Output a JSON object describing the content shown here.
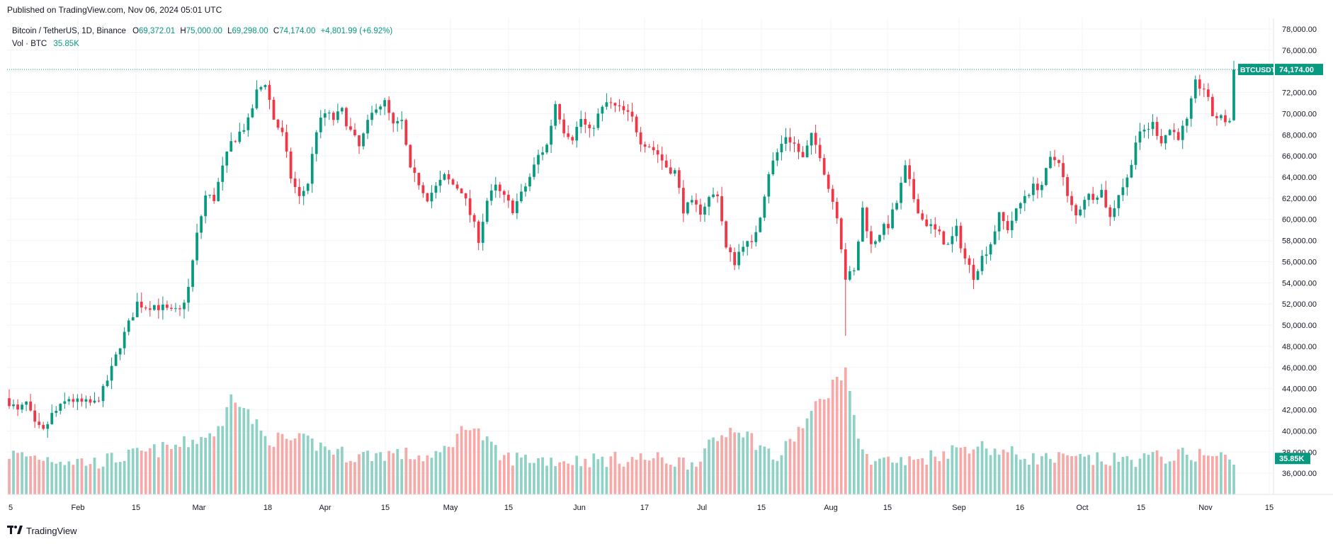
{
  "published": "Published on TradingView.com, Nov 06, 2024 05:01 UTC",
  "legend": {
    "symbol": "Bitcoin / TetherUS, 1D, Binance",
    "open_label": "O",
    "open": "69,372.01",
    "high_label": "H",
    "high": "75,000.00",
    "low_label": "L",
    "low": "69,298.00",
    "close_label": "C",
    "close": "74,174.00",
    "change": "+4,801.99 (+6.92%)",
    "vol_label": "Vol · BTC",
    "vol_value": "35.85K"
  },
  "footer": {
    "brand": "TradingView",
    "logo_icon": "tradingview-logo-icon"
  },
  "colors": {
    "up": "#089981",
    "down": "#F23645",
    "vol_up": "#90D1C6",
    "vol_down": "#F7A9A7",
    "grid": "#F0F3FA",
    "axis_text": "#131722"
  },
  "chart_data": {
    "type": "candlestick",
    "symbol": "BTCUSDT",
    "ylim": [
      34000,
      79000
    ],
    "y_ticks": [
      "78,000.00",
      "76,000.00",
      "74,000.00",
      "72,000.00",
      "70,000.00",
      "68,000.00",
      "66,000.00",
      "64,000.00",
      "62,000.00",
      "60,000.00",
      "58,000.00",
      "56,000.00",
      "54,000.00",
      "52,000.00",
      "50,000.00",
      "48,000.00",
      "46,000.00",
      "44,000.00",
      "42,000.00",
      "40,000.00",
      "38,000.00",
      "36,000.00"
    ],
    "x_ticks": [
      "5",
      "Feb",
      "15",
      "Mar",
      "18",
      "Apr",
      "15",
      "May",
      "15",
      "Jun",
      "17",
      "Jul",
      "15",
      "Aug",
      "15",
      "Sep",
      "16",
      "Oct",
      "15",
      "Nov",
      "15"
    ],
    "last_price": 74174.0,
    "last_price_label": "74,174.00",
    "price_tag_symbol": "BTCUSDT",
    "volume_last_label": "35.85K",
    "anchors": [
      [
        0,
        42800
      ],
      [
        2,
        41800
      ],
      [
        4,
        42600
      ],
      [
        6,
        40500
      ],
      [
        8,
        39900
      ],
      [
        10,
        41500
      ],
      [
        12,
        42200
      ],
      [
        14,
        43100
      ],
      [
        16,
        42700
      ],
      [
        18,
        42600
      ],
      [
        20,
        42600
      ],
      [
        22,
        43800
      ],
      [
        24,
        45800
      ],
      [
        26,
        48200
      ],
      [
        28,
        50100
      ],
      [
        30,
        52100
      ],
      [
        32,
        51800
      ],
      [
        34,
        51900
      ],
      [
        36,
        51600
      ],
      [
        38,
        51200
      ],
      [
        40,
        51300
      ],
      [
        42,
        53500
      ],
      [
        44,
        58500
      ],
      [
        46,
        62200
      ],
      [
        48,
        62000
      ],
      [
        50,
        64800
      ],
      [
        52,
        67200
      ],
      [
        54,
        68200
      ],
      [
        56,
        69200
      ],
      [
        58,
        72000
      ],
      [
        60,
        73000
      ],
      [
        62,
        69500
      ],
      [
        64,
        68000
      ],
      [
        66,
        64000
      ],
      [
        68,
        62000
      ],
      [
        70,
        63500
      ],
      [
        72,
        68500
      ],
      [
        74,
        70000
      ],
      [
        76,
        69500
      ],
      [
        78,
        70200
      ],
      [
        80,
        68300
      ],
      [
        82,
        66800
      ],
      [
        84,
        69000
      ],
      [
        86,
        70800
      ],
      [
        88,
        71000
      ],
      [
        90,
        68800
      ],
      [
        92,
        69200
      ],
      [
        94,
        64500
      ],
      [
        96,
        63500
      ],
      [
        98,
        62100
      ],
      [
        100,
        63000
      ],
      [
        102,
        64000
      ],
      [
        104,
        63300
      ],
      [
        106,
        62800
      ],
      [
        108,
        60500
      ],
      [
        110,
        58200
      ],
      [
        112,
        61800
      ],
      [
        114,
        63000
      ],
      [
        116,
        62000
      ],
      [
        118,
        61000
      ],
      [
        120,
        62300
      ],
      [
        122,
        64000
      ],
      [
        124,
        66000
      ],
      [
        126,
        67000
      ],
      [
        128,
        71000
      ],
      [
        130,
        68500
      ],
      [
        132,
        67800
      ],
      [
        134,
        69500
      ],
      [
        136,
        68200
      ],
      [
        138,
        69800
      ],
      [
        140,
        71000
      ],
      [
        142,
        70600
      ],
      [
        144,
        70200
      ],
      [
        146,
        69500
      ],
      [
        148,
        67500
      ],
      [
        150,
        67000
      ],
      [
        152,
        66200
      ],
      [
        154,
        65000
      ],
      [
        156,
        64500
      ],
      [
        158,
        61000
      ],
      [
        160,
        61400
      ],
      [
        162,
        60800
      ],
      [
        164,
        62000
      ],
      [
        166,
        62500
      ],
      [
        168,
        57200
      ],
      [
        170,
        56000
      ],
      [
        172,
        57800
      ],
      [
        174,
        57500
      ],
      [
        176,
        60500
      ],
      [
        178,
        64500
      ],
      [
        180,
        66300
      ],
      [
        182,
        67900
      ],
      [
        184,
        67100
      ],
      [
        186,
        65700
      ],
      [
        188,
        67800
      ],
      [
        190,
        66200
      ],
      [
        192,
        63000
      ],
      [
        194,
        60500
      ],
      [
        196,
        54500
      ],
      [
        198,
        55000
      ],
      [
        200,
        61000
      ],
      [
        202,
        57500
      ],
      [
        204,
        58800
      ],
      [
        206,
        59500
      ],
      [
        208,
        61600
      ],
      [
        210,
        64800
      ],
      [
        212,
        62000
      ],
      [
        214,
        60000
      ],
      [
        216,
        59300
      ],
      [
        218,
        58500
      ],
      [
        220,
        57500
      ],
      [
        222,
        59000
      ],
      [
        224,
        56300
      ],
      [
        226,
        54700
      ],
      [
        228,
        56400
      ],
      [
        230,
        57800
      ],
      [
        232,
        60300
      ],
      [
        234,
        59200
      ],
      [
        236,
        60700
      ],
      [
        238,
        62300
      ],
      [
        240,
        63000
      ],
      [
        242,
        63300
      ],
      [
        244,
        65600
      ],
      [
        246,
        65700
      ],
      [
        248,
        62000
      ],
      [
        250,
        60300
      ],
      [
        252,
        62100
      ],
      [
        254,
        62300
      ],
      [
        256,
        62700
      ],
      [
        258,
        60100
      ],
      [
        260,
        62500
      ],
      [
        262,
        63800
      ],
      [
        264,
        67400
      ],
      [
        266,
        68400
      ],
      [
        268,
        69000
      ],
      [
        270,
        67500
      ],
      [
        272,
        68500
      ],
      [
        274,
        67900
      ],
      [
        276,
        69200
      ],
      [
        278,
        72800
      ],
      [
        280,
        72400
      ],
      [
        282,
        69900
      ],
      [
        284,
        69500
      ],
      [
        286,
        69300
      ],
      [
        287,
        74174
      ]
    ],
    "volume_anchors": [
      [
        0,
        37800
      ],
      [
        20,
        37000
      ],
      [
        40,
        38600
      ],
      [
        50,
        40200
      ],
      [
        52,
        44000
      ],
      [
        60,
        39300
      ],
      [
        70,
        39000
      ],
      [
        80,
        37600
      ],
      [
        90,
        37900
      ],
      [
        100,
        37400
      ],
      [
        108,
        40800
      ],
      [
        115,
        37500
      ],
      [
        130,
        37200
      ],
      [
        150,
        37400
      ],
      [
        160,
        37000
      ],
      [
        170,
        40600
      ],
      [
        180,
        37300
      ],
      [
        196,
        46000
      ],
      [
        200,
        37600
      ],
      [
        210,
        37000
      ],
      [
        226,
        38700
      ],
      [
        240,
        37400
      ],
      [
        260,
        37200
      ],
      [
        278,
        37800
      ],
      [
        287,
        37400
      ]
    ]
  }
}
